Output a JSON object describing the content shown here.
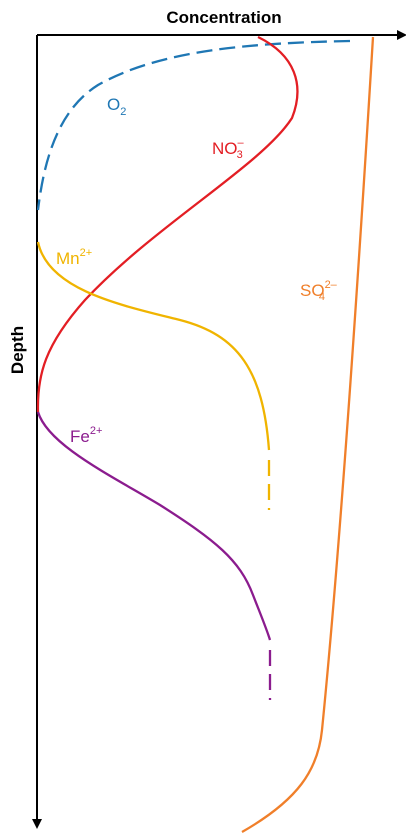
{
  "figure": {
    "x_axis_title": "Concentration",
    "y_axis_title": "Depth",
    "x_axis_direction": "right",
    "y_axis_direction": "down"
  },
  "species": [
    {
      "id": "o2",
      "label": {
        "base": "O",
        "sub": "2",
        "sup": ""
      },
      "color": "#1f77b4",
      "line_style": "dashed",
      "profile": "high concentration at the surface, decreasing rapidly to zero with depth"
    },
    {
      "id": "no3",
      "label": {
        "base": "NO",
        "sub": "3",
        "sup": "–"
      },
      "color": "#e31e24",
      "line_style": "solid",
      "profile": "peak concentration near the surface, decreasing to zero at mid depth"
    },
    {
      "id": "mn",
      "label": {
        "base": "Mn",
        "sub": "",
        "sup": "2+"
      },
      "color": "#f0b400",
      "line_style": "solid, dashed at depth",
      "profile": "appears below the oxic zone and increases with depth"
    },
    {
      "id": "fe",
      "label": {
        "base": "Fe",
        "sub": "",
        "sup": "2+"
      },
      "color": "#8b1c8e",
      "line_style": "solid, dashed at depth",
      "profile": "appears below the nitrate zone and increases with depth"
    },
    {
      "id": "so4",
      "label": {
        "base": "SO",
        "sub": "4",
        "sup": "2–"
      },
      "color": "#f07f2a",
      "line_style": "solid",
      "profile": "near-constant high concentration, slowly decreasing then dropping sharply at the greatest depth"
    }
  ]
}
